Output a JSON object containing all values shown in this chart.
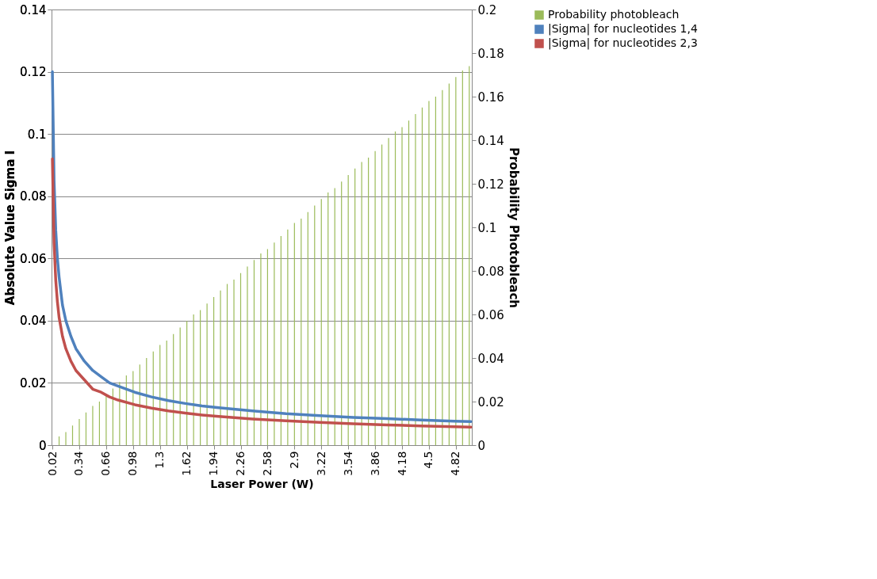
{
  "chart_data": {
    "type": "bar",
    "xlabel": "Laser Power (W)",
    "ylabel": "Absolute Value Sigma I",
    "y2label": "Probability Photobleach",
    "xlim": [
      0.01,
      5.01
    ],
    "xticks": [
      0.02,
      0.34,
      0.66,
      0.98,
      1.3,
      1.62,
      1.94,
      2.26,
      2.58,
      2.9,
      3.22,
      3.54,
      3.86,
      4.18,
      4.5,
      4.82
    ],
    "ylim": [
      0,
      0.14
    ],
    "yticks": [
      0,
      0.02,
      0.04,
      0.06,
      0.08,
      0.1,
      0.12,
      0.14
    ],
    "y2lim": [
      0,
      0.2
    ],
    "y2ticks": [
      0,
      0.02,
      0.04,
      0.06,
      0.08,
      0.1,
      0.12,
      0.14,
      0.16,
      0.18,
      0.2
    ],
    "grid": "y",
    "legend": "right",
    "series": [
      {
        "name": "Probability photobleach",
        "axis": "y2",
        "color": "#9bbb59",
        "x": [
          0.1,
          0.18,
          0.26,
          0.34,
          0.42,
          0.5,
          0.58,
          0.66,
          0.74,
          0.82,
          0.9,
          0.98,
          1.06,
          1.14,
          1.22,
          1.3,
          1.38,
          1.46,
          1.54,
          1.62,
          1.7,
          1.78,
          1.86,
          1.94,
          2.02,
          2.1,
          2.18,
          2.26,
          2.34,
          2.42,
          2.5,
          2.58,
          2.66,
          2.74,
          2.82,
          2.9,
          2.98,
          3.06,
          3.14,
          3.22,
          3.3,
          3.38,
          3.46,
          3.54,
          3.62,
          3.7,
          3.78,
          3.86,
          3.94,
          4.02,
          4.1,
          4.18,
          4.26,
          4.34,
          4.42,
          4.5,
          4.58,
          4.66,
          4.74,
          4.82,
          4.9,
          4.98
        ],
        "values": [
          0.004,
          0.006,
          0.009,
          0.012,
          0.015,
          0.018,
          0.02,
          0.023,
          0.026,
          0.029,
          0.032,
          0.034,
          0.037,
          0.04,
          0.043,
          0.046,
          0.048,
          0.051,
          0.054,
          0.057,
          0.06,
          0.062,
          0.065,
          0.068,
          0.071,
          0.074,
          0.076,
          0.079,
          0.082,
          0.085,
          0.088,
          0.09,
          0.093,
          0.096,
          0.099,
          0.102,
          0.104,
          0.107,
          0.11,
          0.113,
          0.116,
          0.118,
          0.121,
          0.124,
          0.127,
          0.13,
          0.132,
          0.135,
          0.138,
          0.141,
          0.144,
          0.146,
          0.149,
          0.152,
          0.155,
          0.158,
          0.16,
          0.163,
          0.166,
          0.169,
          0.172,
          0.174
        ]
      },
      {
        "name": "|Sigma| for nucleotides 1,4",
        "type": "line",
        "color": "#4f81bd",
        "x": [
          0.02,
          0.04,
          0.06,
          0.08,
          0.1,
          0.14,
          0.18,
          0.24,
          0.3,
          0.4,
          0.5,
          0.6,
          0.7,
          0.8,
          1.0,
          1.2,
          1.4,
          1.6,
          1.8,
          2.0,
          2.4,
          2.8,
          3.2,
          3.6,
          4.0,
          4.4,
          4.8,
          5.0
        ],
        "values": [
          0.12,
          0.085,
          0.069,
          0.06,
          0.054,
          0.045,
          0.04,
          0.035,
          0.031,
          0.027,
          0.024,
          0.022,
          0.02,
          0.019,
          0.017,
          0.0155,
          0.0143,
          0.0134,
          0.0126,
          0.012,
          0.011,
          0.0101,
          0.0095,
          0.0089,
          0.0085,
          0.0081,
          0.0077,
          0.0076
        ]
      },
      {
        "name": "|Sigma| for nucleotides 2,3",
        "type": "line",
        "color": "#c0504d",
        "x": [
          0.02,
          0.04,
          0.06,
          0.08,
          0.1,
          0.14,
          0.18,
          0.24,
          0.3,
          0.4,
          0.5,
          0.6,
          0.7,
          0.8,
          1.0,
          1.2,
          1.4,
          1.6,
          1.8,
          2.0,
          2.4,
          2.8,
          3.2,
          3.6,
          4.0,
          4.4,
          4.8,
          5.0
        ],
        "values": [
          0.092,
          0.065,
          0.053,
          0.046,
          0.041,
          0.035,
          0.031,
          0.027,
          0.024,
          0.021,
          0.018,
          0.017,
          0.0155,
          0.0145,
          0.013,
          0.0119,
          0.011,
          0.0103,
          0.0097,
          0.0092,
          0.0084,
          0.0078,
          0.0073,
          0.0069,
          0.0065,
          0.0062,
          0.0059,
          0.0058
        ]
      }
    ]
  }
}
